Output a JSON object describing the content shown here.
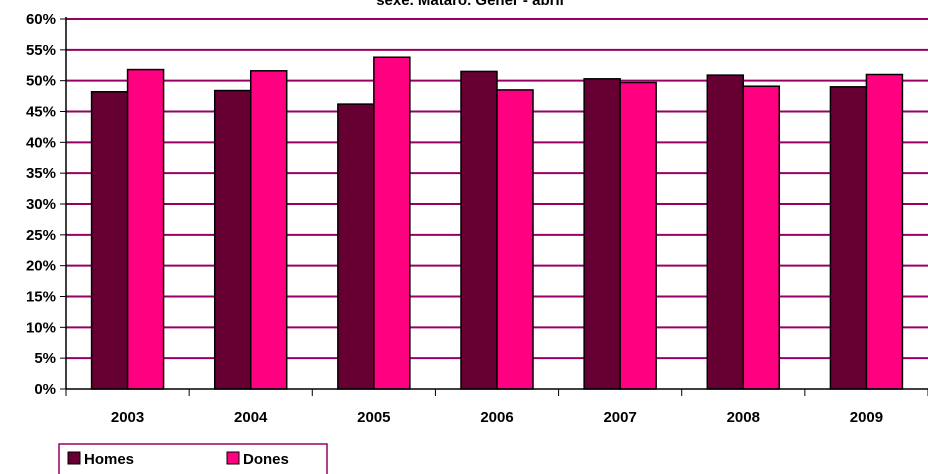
{
  "chart_data": {
    "type": "bar",
    "title": "sexe. Mataró. Gener - abril",
    "xlabel": "",
    "ylabel": "",
    "categories": [
      "2003",
      "2004",
      "2005",
      "2006",
      "2007",
      "2008",
      "2009"
    ],
    "series": [
      {
        "name": "Homes",
        "color": "#660033",
        "values": [
          48.2,
          48.4,
          46.2,
          51.5,
          50.3,
          50.9,
          49.0
        ]
      },
      {
        "name": "Dones",
        "color": "#ff0080",
        "values": [
          51.8,
          51.6,
          53.8,
          48.5,
          49.7,
          49.1,
          51.0
        ]
      }
    ],
    "ylim": [
      0,
      60
    ],
    "yticks": [
      0,
      5,
      10,
      15,
      20,
      25,
      30,
      35,
      40,
      45,
      50,
      55,
      60
    ],
    "ytick_suffix": "%",
    "grid": true,
    "gridline_color": "#990066",
    "legend_position": "bottom-left"
  }
}
